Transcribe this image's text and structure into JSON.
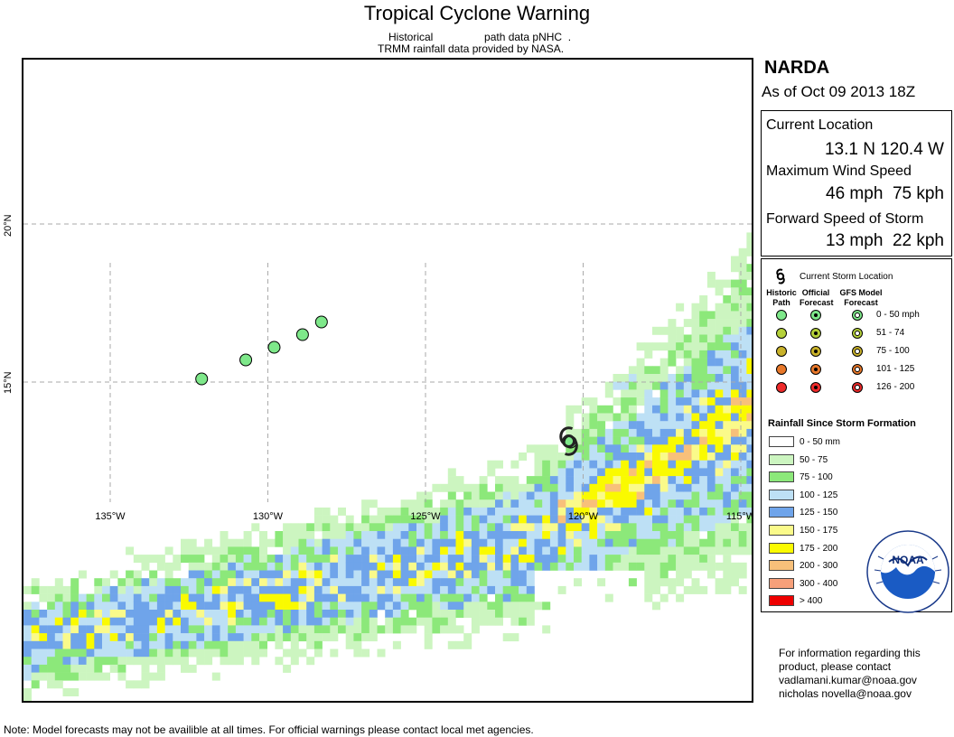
{
  "header": {
    "title": "Tropical Cyclone Warning",
    "subtitle_line1": "Historical                 path data pNHC  .",
    "subtitle_line2": "TRMM rainfall data provided by NASA."
  },
  "map": {
    "longitude_labels": [
      "135°W",
      "130°W",
      "125°W",
      "120°W",
      "115°W"
    ],
    "latitude_labels": [
      "20°N",
      "15°N"
    ],
    "historic_path": [
      {
        "lon": -132.1,
        "lat": 15.1
      },
      {
        "lon": -130.7,
        "lat": 15.7
      },
      {
        "lon": -129.8,
        "lat": 16.1
      },
      {
        "lon": -128.9,
        "lat": 16.5
      },
      {
        "lon": -128.3,
        "lat": 16.9
      },
      {
        "lon": -120.4,
        "lat": 13.1
      }
    ],
    "current_storm_icon": "hurricane-symbol-icon"
  },
  "storm": {
    "name": "NARDA",
    "as_of": "As of Oct 09 2013 18Z",
    "current_location_label": "Current Location",
    "current_location": "13.1 N 120.4 W",
    "max_wind_label": "Maximum Wind Speed",
    "max_wind": "46 mph  75 kph",
    "forward_speed_label": "Forward Speed of Storm",
    "forward_speed": "13 mph  22 kph"
  },
  "legend": {
    "current_storm_location": "Current Storm Location",
    "col_historic": "Historic Path",
    "col_official": "Official Forecast",
    "col_gfs": "GFS Model Forecast",
    "wind_classes": [
      {
        "label": "0 - 50 mph",
        "color": "#7ee88a"
      },
      {
        "label": "51 - 74",
        "color": "#b5d13a"
      },
      {
        "label": "75 - 100",
        "color": "#c9b22a"
      },
      {
        "label": "101 - 125",
        "color": "#e8782a"
      },
      {
        "label": "126 - 200",
        "color": "#ee2a2a"
      }
    ],
    "rainfall_title": "Rainfall Since Storm Formation",
    "rainfall_classes": [
      {
        "label": "0 - 50 mm",
        "color": "#ffffff"
      },
      {
        "label": "50 - 75",
        "color": "#ccf5c0"
      },
      {
        "label": "75 - 100",
        "color": "#8ce87a"
      },
      {
        "label": "100 - 125",
        "color": "#bde0f5"
      },
      {
        "label": "125 - 150",
        "color": "#6fa4ea"
      },
      {
        "label": "150 - 175",
        "color": "#fafa8a"
      },
      {
        "label": "175 - 200",
        "color": "#fafa00"
      },
      {
        "label": "200 - 300",
        "color": "#f8c07a"
      },
      {
        "label": "300 - 400",
        "color": "#f7a07a"
      },
      {
        "label": "> 400",
        "color": "#ee0000"
      }
    ]
  },
  "logo": {
    "text": "NOAA"
  },
  "contact": {
    "line1": "For information regarding this",
    "line2": "product, please contact",
    "email1": "vadlamani.kumar@noaa.gov",
    "email2": "nicholas novella@noaa.gov"
  },
  "footer_note": "Note: Model forecasts may not be availible at all times.  For official warnings please contact local met agencies."
}
